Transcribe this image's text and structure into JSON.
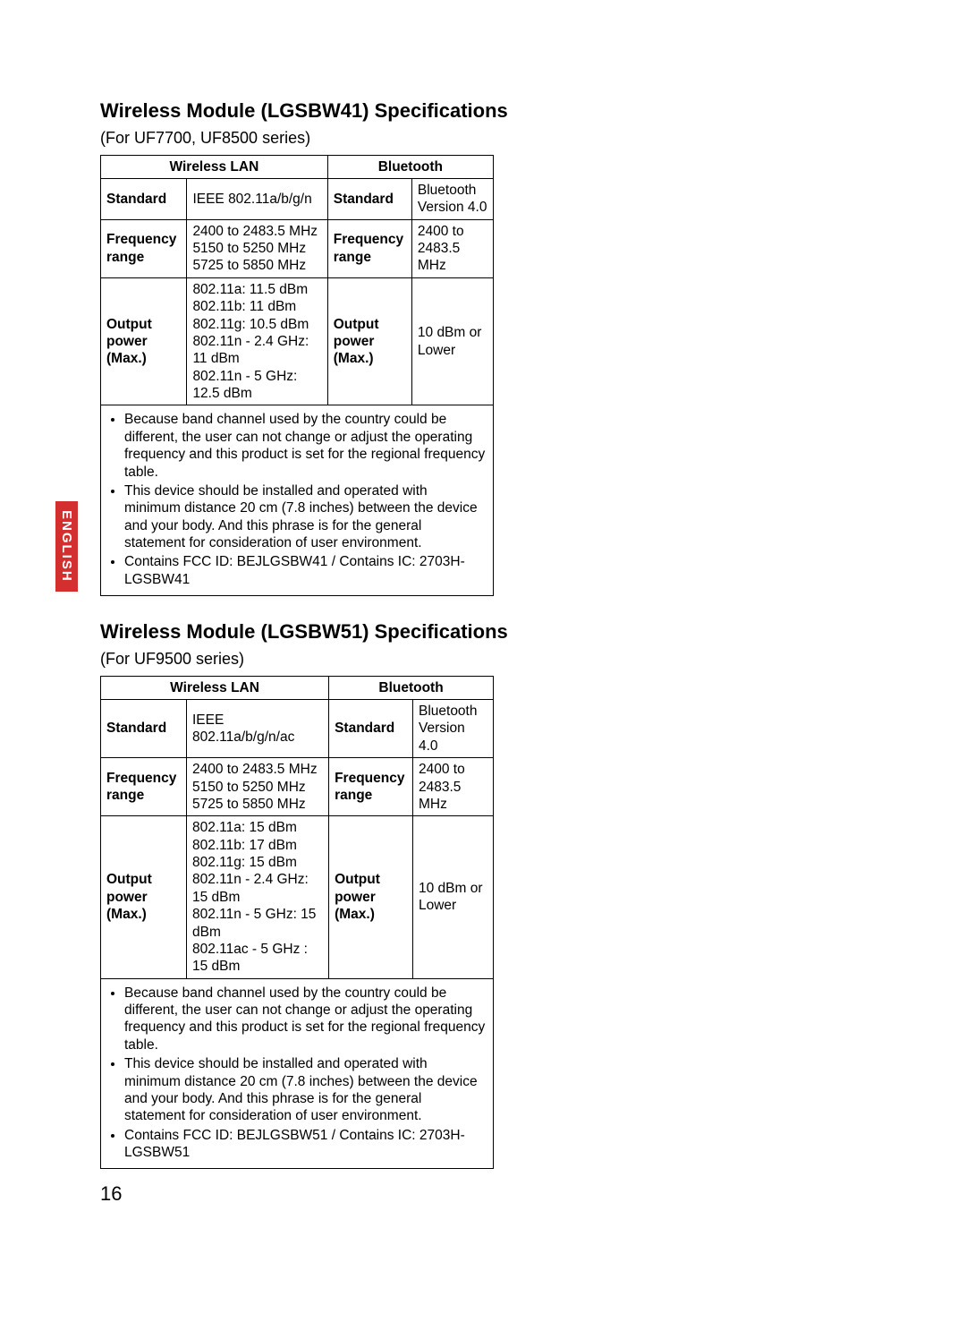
{
  "sideTab": "ENGLISH",
  "pageNumber": "16",
  "section1": {
    "title": "Wireless Module (LGSBW41) Specifications",
    "subtitle": "(For UF7700, UF8500 series)",
    "headers": {
      "wlan": "Wireless LAN",
      "bt": "Bluetooth"
    },
    "rows": {
      "standard": {
        "wlanLabel": "Standard",
        "wlanVal": "IEEE 802.11a/b/g/n",
        "btLabel": "Standard",
        "btVal": "Bluetooth Version 4.0"
      },
      "freq": {
        "wlanLabel": "Frequency range",
        "wlanVal": "2400 to 2483.5 MHz\n5150 to 5250 MHz\n5725 to 5850 MHz",
        "btLabel": "Frequency range",
        "btVal": "2400 to 2483.5 MHz"
      },
      "power": {
        "wlanLabel": "Output power (Max.)",
        "wlanVal": "802.11a: 11.5 dBm\n802.11b: 11 dBm\n802.11g: 10.5 dBm\n802.11n - 2.4 GHz: 11 dBm\n802.11n - 5 GHz: 12.5 dBm",
        "btLabel": "Output power (Max.)",
        "btVal": "10 dBm or Lower"
      }
    },
    "notes": [
      "Because band channel used by the country could be different, the user can not change or adjust the operating frequency and this product is set for the regional frequency table.",
      "This device should be installed and operated with minimum distance 20 cm (7.8 inches) between the device and your body. And this phrase is for the general statement for consideration of user environment.",
      "Contains FCC ID: BEJLGSBW41 / Contains IC: 2703H-LGSBW41"
    ]
  },
  "section2": {
    "title": "Wireless Module (LGSBW51) Specifications",
    "subtitle": "(For UF9500 series)",
    "headers": {
      "wlan": "Wireless LAN",
      "bt": "Bluetooth"
    },
    "rows": {
      "standard": {
        "wlanLabel": "Standard",
        "wlanVal": "IEEE 802.11a/b/g/n/ac",
        "btLabel": "Standard",
        "btVal": "Bluetooth Version 4.0"
      },
      "freq": {
        "wlanLabel": "Frequency range",
        "wlanVal": "2400 to 2483.5 MHz\n5150 to 5250 MHz\n5725 to 5850 MHz",
        "btLabel": "Frequency range",
        "btVal": "2400 to 2483.5 MHz"
      },
      "power": {
        "wlanLabel": "Output power (Max.)",
        "wlanVal": "802.11a:  15 dBm\n802.11b: 17 dBm\n802.11g: 15 dBm\n802.11n - 2.4 GHz: 15 dBm\n802.11n - 5 GHz: 15 dBm\n802.11ac - 5 GHz : 15 dBm",
        "btLabel": "Output power (Max.)",
        "btVal": "10 dBm or Lower"
      }
    },
    "notes": [
      "Because band channel used by the country could be different, the user can not change or adjust the operating frequency and this product is set for the regional frequency table.",
      "This device should be installed and operated with minimum distance 20 cm (7.8 inches) between the device and your body. And this phrase is for the general statement for consideration of user environment.",
      "Contains FCC ID: BEJLGSBW51 / Contains IC: 2703H-LGSBW51"
    ]
  }
}
